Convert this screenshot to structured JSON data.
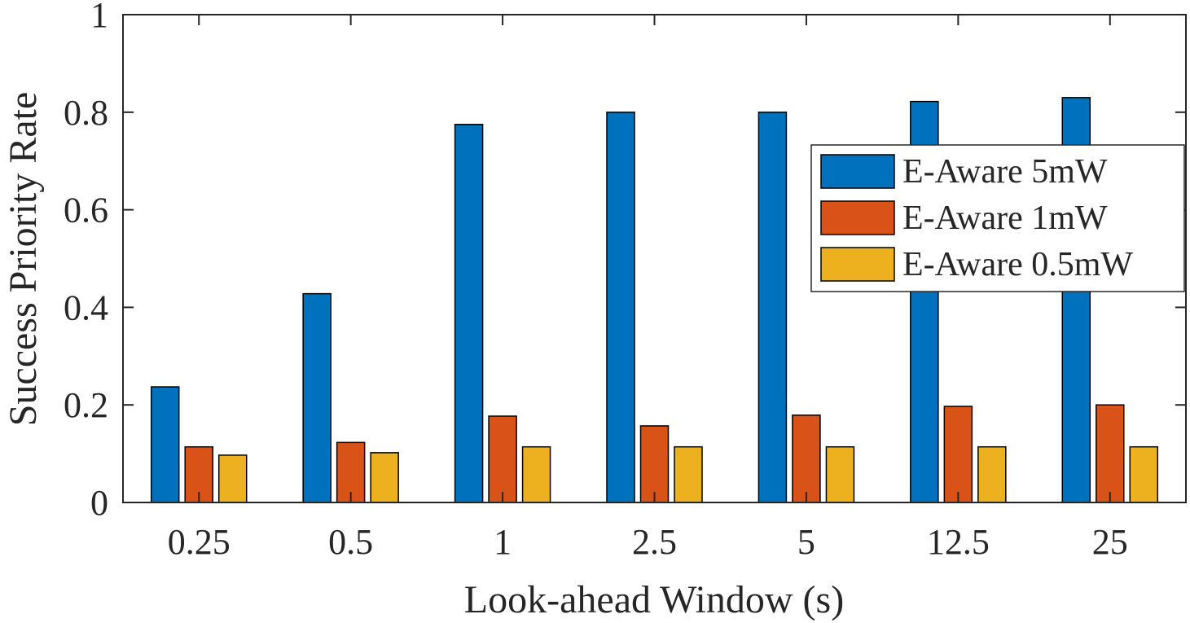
{
  "chart_data": {
    "type": "bar",
    "title": "",
    "xlabel": "Look-ahead Window (s)",
    "ylabel": "Success Priority Rate",
    "categories": [
      "0.25",
      "0.5",
      "1",
      "2.5",
      "5",
      "12.5",
      "25"
    ],
    "series": [
      {
        "name": "E-Aware 5mW",
        "color": "#0072BD",
        "values": [
          0.237,
          0.428,
          0.775,
          0.8,
          0.8,
          0.822,
          0.83
        ]
      },
      {
        "name": "E-Aware 1mW",
        "color": "#D95319",
        "values": [
          0.114,
          0.123,
          0.177,
          0.157,
          0.179,
          0.197,
          0.2
        ]
      },
      {
        "name": "E-Aware 0.5mW",
        "color": "#EDB120",
        "values": [
          0.097,
          0.102,
          0.114,
          0.114,
          0.114,
          0.114,
          0.114
        ]
      }
    ],
    "ylim": [
      0,
      1
    ],
    "yticks": [
      "0",
      "0.2",
      "0.4",
      "0.6",
      "0.8",
      "1"
    ],
    "legend_position": "right",
    "grid": false
  }
}
